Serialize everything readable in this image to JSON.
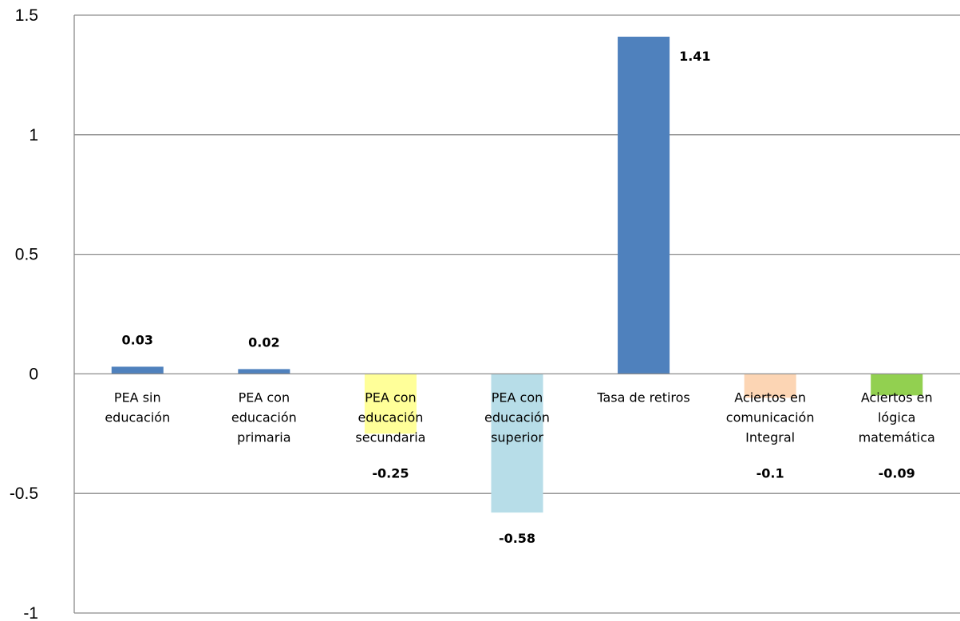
{
  "chart_data": {
    "type": "bar",
    "title": "",
    "xlabel": "",
    "ylabel": "",
    "ylim": [
      -1,
      1.5
    ],
    "yticks": [
      1.5,
      1,
      0.5,
      0,
      -0.5,
      -1
    ],
    "ytick_labels": [
      "1.5",
      "1",
      "0.5",
      "0",
      "-0.5",
      "-1"
    ],
    "grid": true,
    "legend": "none",
    "categories": [
      [
        "PEA sin",
        "educación"
      ],
      [
        "PEA con",
        "educación",
        "primaria"
      ],
      [
        "PEA con",
        "educación",
        "secundaria"
      ],
      [
        "PEA con",
        "educación",
        "superior"
      ],
      [
        "Tasa de retiros"
      ],
      [
        "Aciertos en",
        "comunicación",
        "Integral"
      ],
      [
        "Aciertos en",
        "lógica",
        "matemática"
      ]
    ],
    "values": [
      0.03,
      0.02,
      -0.25,
      -0.58,
      1.41,
      -0.1,
      -0.09
    ],
    "value_labels": [
      "0.03",
      "0.02",
      "-0.25",
      "-0.58",
      "1.41",
      "-0.1",
      "-0.09"
    ],
    "colors": [
      "#4f81bd",
      "#4f81bd",
      "#ffff99",
      "#b7dde8",
      "#4f81bd",
      "#fcd5b4",
      "#92d050"
    ]
  }
}
